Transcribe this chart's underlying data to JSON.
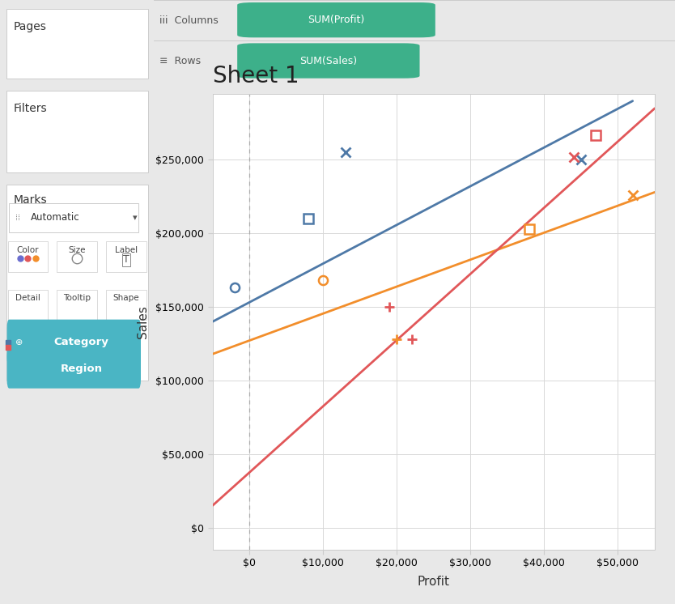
{
  "title": "Sheet 1",
  "xlabel": "Profit",
  "ylabel": "Sales",
  "xlim": [
    -5000,
    55000
  ],
  "ylim": [
    -15000,
    295000
  ],
  "xticks": [
    0,
    10000,
    20000,
    30000,
    40000,
    50000
  ],
  "yticks": [
    0,
    50000,
    100000,
    150000,
    200000,
    250000
  ],
  "categories": {
    "blue": {
      "color": "#4e79a7",
      "points": [
        [
          -2000,
          163000
        ],
        [
          8000,
          210000
        ],
        [
          13000,
          255000
        ],
        [
          45000,
          250000
        ]
      ],
      "markers": [
        "o",
        "s",
        "x",
        "x"
      ],
      "trend": [
        -5000,
        140000,
        52000,
        290000
      ]
    },
    "orange": {
      "color": "#f28e2b",
      "points": [
        [
          10000,
          168000
        ],
        [
          38000,
          203000
        ],
        [
          20000,
          128000
        ],
        [
          52000,
          226000
        ]
      ],
      "markers": [
        "o",
        "s",
        "+",
        "x"
      ],
      "trend": [
        -5000,
        118000,
        55000,
        228000
      ]
    },
    "red": {
      "color": "#e15759",
      "points": [
        [
          19000,
          150000
        ],
        [
          22000,
          128000
        ],
        [
          44000,
          252000
        ],
        [
          47000,
          267000
        ]
      ],
      "markers": [
        "+",
        "+",
        "x",
        "s"
      ],
      "trend": [
        -5000,
        15000,
        55000,
        285000
      ]
    }
  },
  "fig_bg": "#e8e8e8",
  "sidebar_bg": "#e8e8e8",
  "panel_bg": "#ffffff",
  "header_bg": "#f5f5f5",
  "chart_bg": "#ffffff",
  "pill_color": "#3db08a",
  "teal_pill": "#3aaa8e",
  "grid_color": "#d8d8d8",
  "vline_color": "#aaaaaa",
  "columns_text": "SUM(Profit)",
  "rows_text": "SUM(Sales)",
  "pages_label": "Pages",
  "filters_label": "Filters",
  "marks_label": "Marks",
  "category_label": "Category",
  "region_label": "Region"
}
